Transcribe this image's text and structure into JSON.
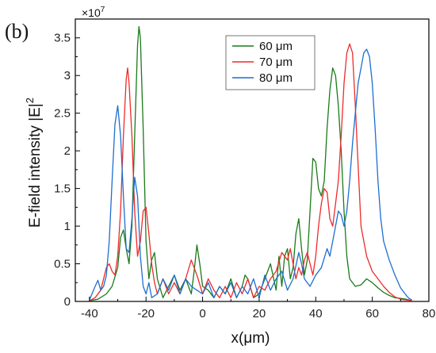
{
  "chart_data": {
    "type": "line",
    "panel_label": "(b)",
    "xlabel": "x(μm)",
    "ylabel": "E-field intensity |E|",
    "ylabel_superscript": "2",
    "y_multiplier": "×10",
    "y_multiplier_exp": "7",
    "xlim": [
      -45,
      80
    ],
    "ylim": [
      0,
      3.75
    ],
    "xticks": [
      -40,
      -20,
      0,
      20,
      40,
      60,
      80
    ],
    "xtick_labels": [
      "-40",
      "-20",
      "0",
      "20",
      "40",
      "60",
      "80"
    ],
    "yticks": [
      0,
      0.5,
      1,
      1.5,
      2,
      2.5,
      3,
      3.5
    ],
    "ytick_labels": [
      "0",
      "0.5",
      "1",
      "1.5",
      "2",
      "2.5",
      "3",
      "3.5"
    ],
    "legend_position": "top-right",
    "series": [
      {
        "name": "60 μm",
        "color": "#1a7a1a",
        "x": [
          -40,
          -37,
          -34,
          -32,
          -30,
          -29,
          -28,
          -27,
          -26,
          -25,
          -24,
          -23,
          -22.5,
          -22,
          -21,
          -20,
          -19,
          -18,
          -17,
          -16,
          -14,
          -12,
          -10,
          -8,
          -6,
          -4,
          -3,
          -2,
          -1,
          0,
          2,
          4,
          6,
          8,
          10,
          12,
          14,
          15,
          16,
          18,
          20,
          22,
          24,
          26,
          27,
          28,
          29,
          30,
          31,
          32,
          33,
          34,
          35,
          36,
          37,
          38,
          39,
          40,
          41,
          42,
          43,
          44,
          45,
          46,
          47,
          48,
          49,
          50,
          51,
          52,
          54,
          56,
          58,
          60,
          62,
          64,
          66,
          68,
          70,
          72,
          74
        ],
        "values": [
          0.01,
          0.03,
          0.1,
          0.2,
          0.45,
          0.85,
          0.95,
          0.7,
          0.5,
          1.0,
          2.2,
          3.4,
          3.65,
          3.5,
          2.3,
          0.8,
          0.3,
          0.55,
          0.65,
          0.3,
          0.05,
          0.2,
          0.35,
          0.15,
          0.3,
          0.1,
          0.4,
          0.75,
          0.5,
          0.2,
          0.15,
          0.05,
          0.2,
          0.1,
          0.3,
          0.05,
          0.2,
          0.35,
          0.3,
          0.05,
          0.1,
          0.3,
          0.5,
          0.15,
          0.6,
          0.2,
          0.6,
          0.7,
          0.3,
          0.45,
          0.9,
          1.1,
          0.7,
          0.35,
          0.55,
          1.2,
          1.9,
          1.85,
          1.5,
          1.4,
          1.6,
          2.3,
          2.8,
          3.1,
          3.0,
          2.6,
          2.0,
          1.2,
          0.6,
          0.3,
          0.2,
          0.22,
          0.3,
          0.25,
          0.18,
          0.12,
          0.08,
          0.05,
          0.04,
          0.03,
          0.01
        ]
      },
      {
        "name": "70 μm",
        "color": "#ef2a2a",
        "x": [
          -40,
          -38,
          -36,
          -34,
          -33,
          -32,
          -31,
          -30,
          -29,
          -28,
          -27,
          -26.5,
          -26,
          -25,
          -24,
          -23,
          -22,
          -21,
          -20,
          -19,
          -18,
          -17,
          -16,
          -14,
          -12,
          -10,
          -8,
          -6,
          -4,
          -2,
          0,
          2,
          4,
          6,
          8,
          10,
          12,
          14,
          16,
          18,
          20,
          22,
          24,
          26,
          28,
          30,
          31,
          32,
          33,
          34,
          35,
          36,
          37,
          38,
          39,
          40,
          41,
          42,
          43,
          44,
          45,
          46,
          47,
          48,
          49,
          50,
          51,
          52,
          53,
          54,
          55,
          56,
          58,
          60,
          62,
          64,
          66,
          68,
          70,
          72,
          74
        ],
        "values": [
          0.01,
          0.05,
          0.15,
          0.45,
          0.5,
          0.4,
          0.35,
          0.6,
          1.2,
          2.2,
          2.95,
          3.1,
          2.9,
          2.2,
          1.2,
          0.6,
          0.8,
          1.2,
          1.25,
          0.9,
          0.5,
          0.25,
          0.1,
          0.3,
          0.1,
          0.25,
          0.1,
          0.3,
          0.55,
          0.35,
          0.1,
          0.3,
          0.15,
          0.05,
          0.2,
          0.05,
          0.25,
          0.1,
          0.3,
          0.05,
          0.2,
          0.15,
          0.3,
          0.4,
          0.65,
          0.55,
          0.7,
          0.5,
          0.3,
          0.45,
          0.35,
          0.55,
          0.65,
          0.5,
          0.35,
          0.6,
          1.0,
          1.3,
          1.5,
          1.45,
          1.1,
          1.0,
          1.3,
          1.6,
          2.2,
          2.9,
          3.3,
          3.42,
          3.3,
          2.6,
          1.8,
          1.0,
          0.6,
          0.4,
          0.3,
          0.2,
          0.12,
          0.06,
          0.03,
          0.02,
          0.01
        ]
      },
      {
        "name": "80 μm",
        "color": "#1c6fd1",
        "x": [
          -40,
          -38,
          -37,
          -36,
          -35,
          -34,
          -33,
          -32,
          -31,
          -30,
          -29,
          -28,
          -27,
          -26,
          -25,
          -24,
          -23,
          -22,
          -21,
          -20,
          -19,
          -18,
          -16,
          -14,
          -12,
          -10,
          -8,
          -6,
          -4,
          -2,
          0,
          2,
          4,
          6,
          8,
          10,
          12,
          14,
          16,
          18,
          20,
          22,
          24,
          26,
          28,
          30,
          32,
          34,
          35,
          36,
          38,
          40,
          42,
          44,
          45,
          46,
          47,
          48,
          49,
          50,
          51,
          52,
          53,
          54,
          55,
          56,
          57,
          58,
          59,
          60,
          61,
          62,
          63,
          64,
          66,
          68,
          70,
          72,
          73,
          74
        ],
        "values": [
          0.02,
          0.2,
          0.28,
          0.15,
          0.2,
          0.35,
          0.8,
          1.6,
          2.35,
          2.6,
          2.2,
          1.4,
          0.7,
          0.65,
          1.1,
          1.65,
          1.4,
          0.6,
          0.2,
          0.1,
          0.25,
          0.05,
          0.1,
          0.3,
          0.15,
          0.35,
          0.1,
          0.3,
          0.2,
          0.15,
          0.1,
          0.25,
          0.05,
          0.2,
          0.1,
          0.25,
          0.05,
          0.2,
          0.1,
          0.3,
          0.05,
          0.35,
          0.15,
          0.3,
          0.4,
          0.15,
          0.3,
          0.65,
          0.5,
          0.3,
          0.2,
          0.35,
          0.45,
          0.7,
          0.6,
          0.8,
          1.0,
          1.2,
          1.15,
          1.0,
          1.2,
          1.6,
          2.1,
          2.5,
          2.9,
          3.1,
          3.3,
          3.35,
          3.25,
          2.9,
          2.3,
          1.6,
          1.1,
          0.8,
          0.55,
          0.35,
          0.18,
          0.08,
          0.04,
          0.02
        ]
      }
    ]
  }
}
